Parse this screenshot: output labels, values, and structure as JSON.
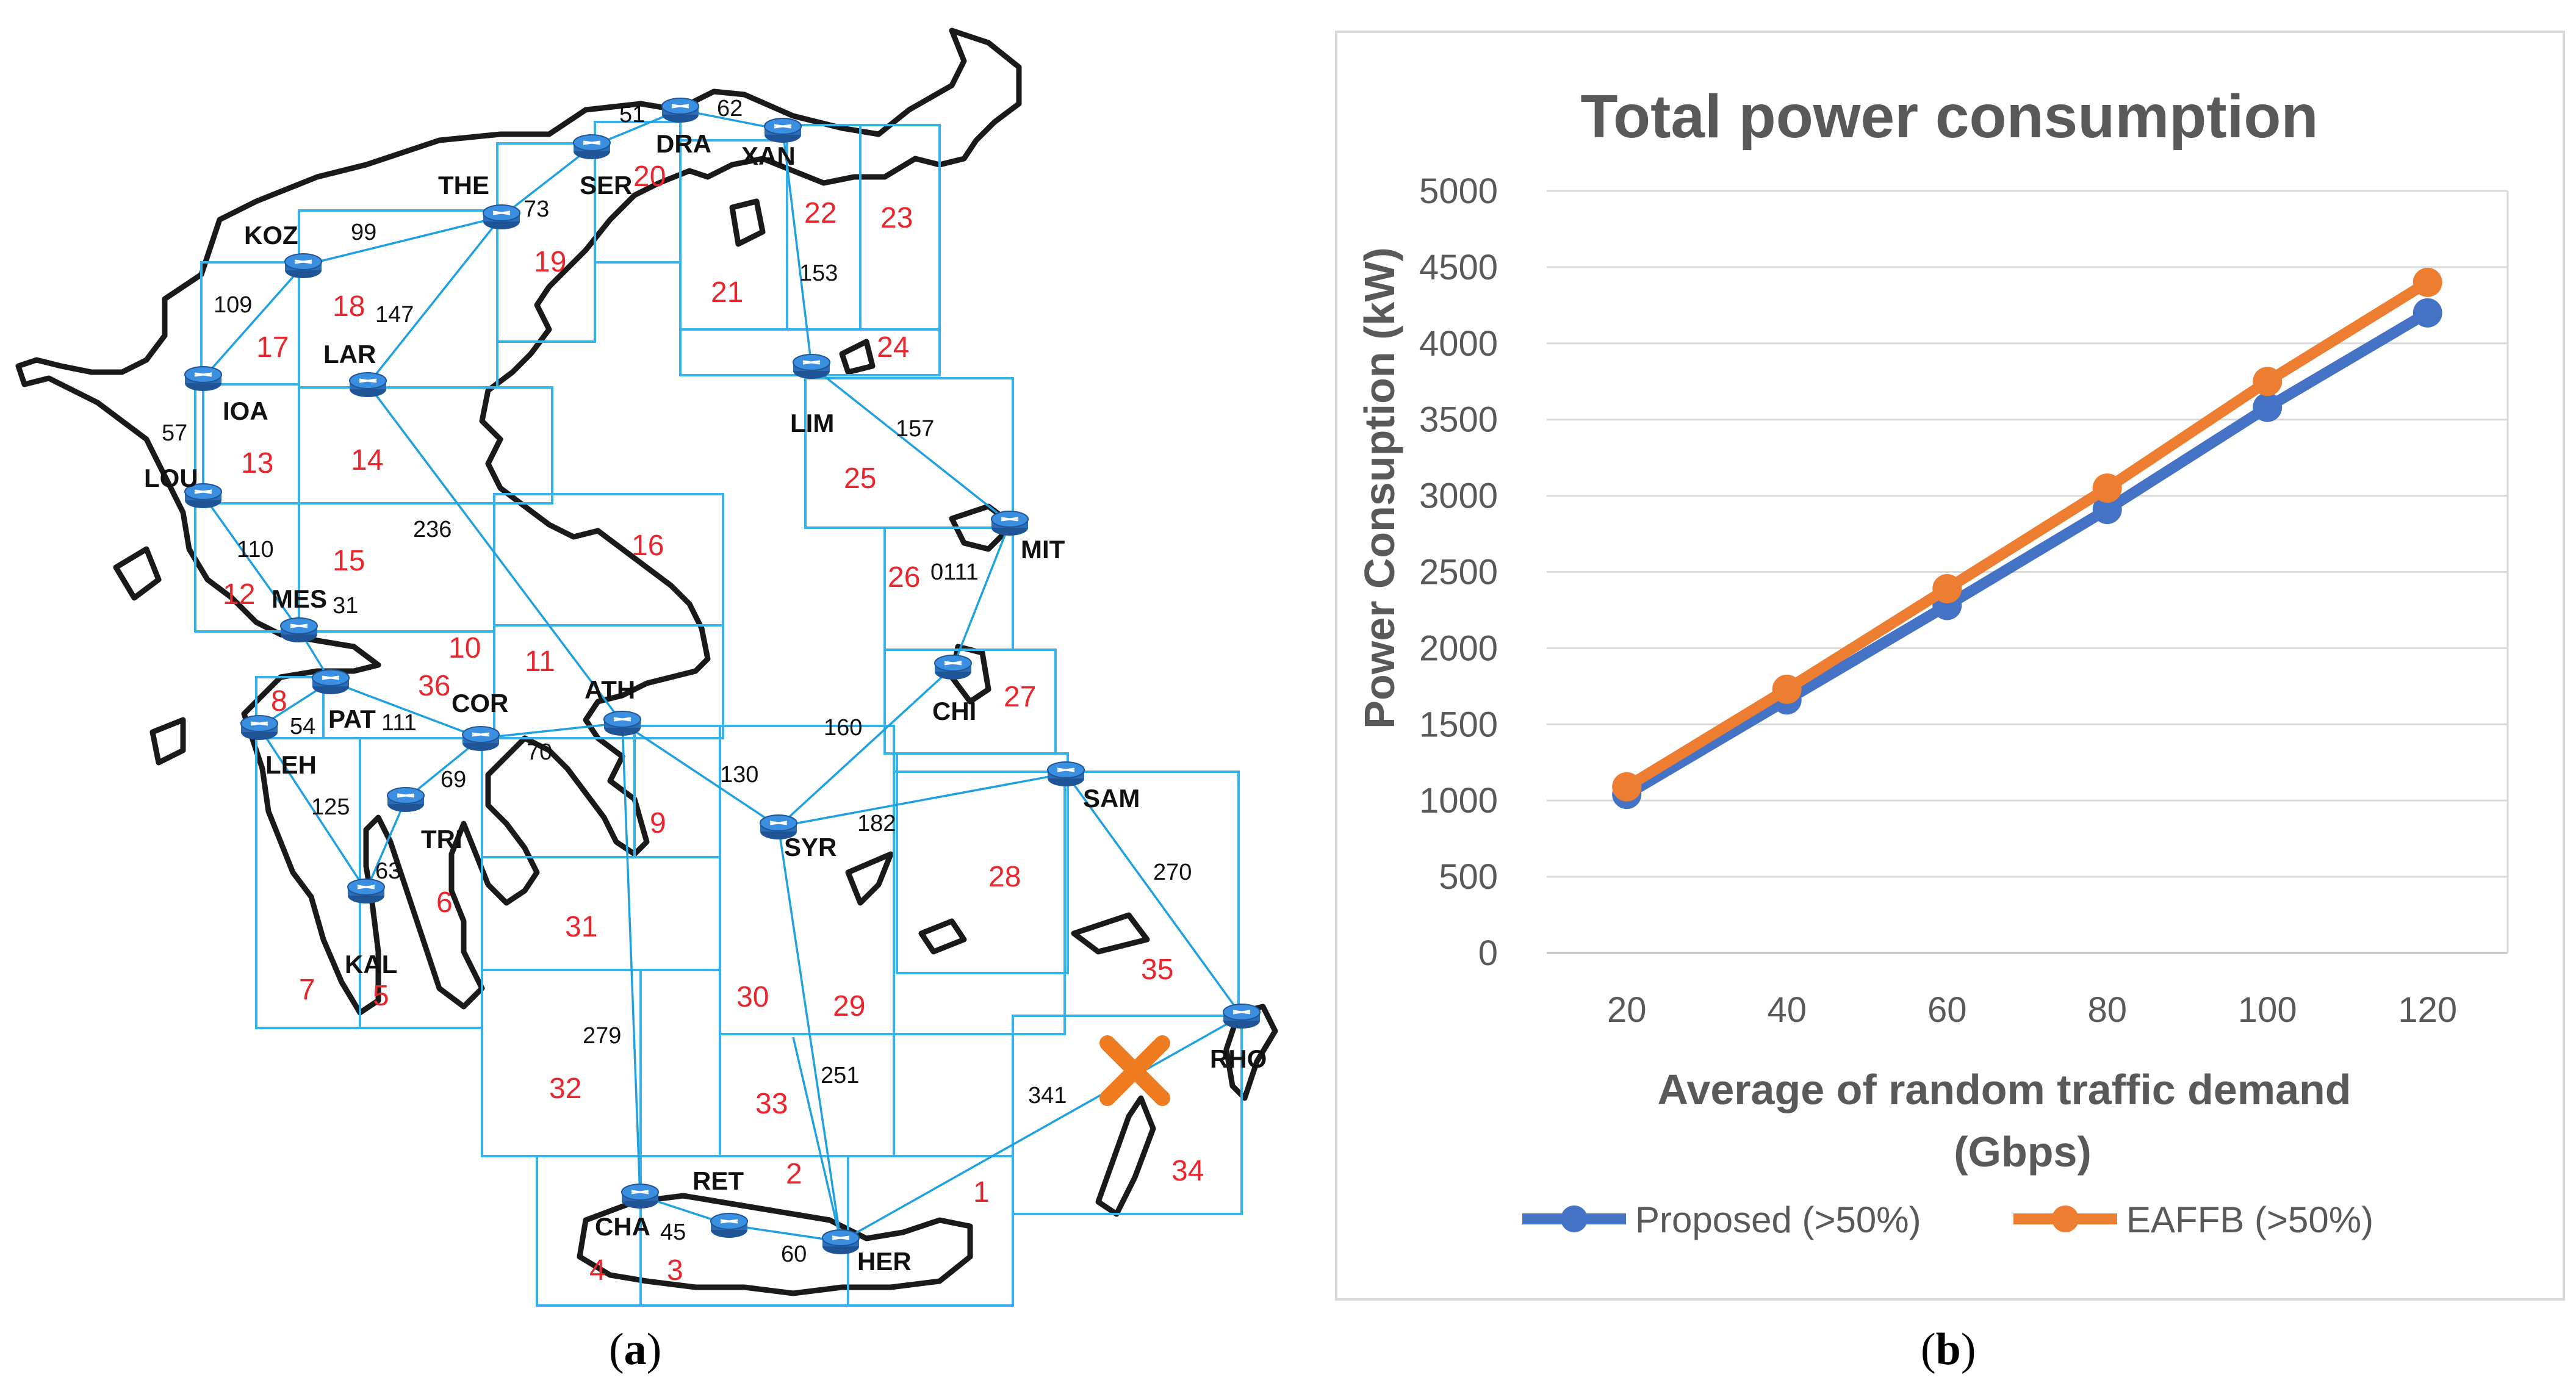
{
  "figure": {
    "caption_a": {
      "open": "(",
      "letter": "a",
      "close": ")"
    },
    "caption_b": {
      "open": "(",
      "letter": "b",
      "close": ")"
    }
  },
  "map": {
    "nodes": [
      {
        "id": "KOZ",
        "label": "KOZ"
      },
      {
        "id": "IOA",
        "label": "IOA"
      },
      {
        "id": "LOU",
        "label": "LOU"
      },
      {
        "id": "LAR",
        "label": "LAR"
      },
      {
        "id": "THE",
        "label": "THE"
      },
      {
        "id": "SER",
        "label": "SER"
      },
      {
        "id": "DRA",
        "label": "DRA"
      },
      {
        "id": "XAN",
        "label": "XAN"
      },
      {
        "id": "LIM",
        "label": "LIM"
      },
      {
        "id": "MIT",
        "label": "MIT"
      },
      {
        "id": "CHI",
        "label": "CHI"
      },
      {
        "id": "SAM",
        "label": "SAM"
      },
      {
        "id": "RHO",
        "label": "RHO"
      },
      {
        "id": "MES",
        "label": "MES"
      },
      {
        "id": "PAT",
        "label": "PAT"
      },
      {
        "id": "LEH",
        "label": "LEH"
      },
      {
        "id": "COR",
        "label": "COR"
      },
      {
        "id": "ATH",
        "label": "ATH"
      },
      {
        "id": "TRI",
        "label": "TRI"
      },
      {
        "id": "KAL",
        "label": "KAL"
      },
      {
        "id": "SYR",
        "label": "SYR"
      },
      {
        "id": "CHA",
        "label": "CHA"
      },
      {
        "id": "RET",
        "label": "RET"
      },
      {
        "id": "HER",
        "label": "HER"
      }
    ],
    "link_distances": [
      "51",
      "62",
      "73",
      "99",
      "109",
      "147",
      "153",
      "157",
      "57",
      "110",
      "236",
      "0111",
      "31",
      "54",
      "111",
      "160",
      "69",
      "70",
      "130",
      "182",
      "125",
      "63",
      "270",
      "279",
      "251",
      "341",
      "45",
      "60"
    ],
    "regions": [
      "1",
      "2",
      "3",
      "4",
      "5",
      "6",
      "7",
      "8",
      "9",
      "10",
      "11",
      "12",
      "13",
      "14",
      "15",
      "16",
      "17",
      "18",
      "19",
      "20",
      "21",
      "22",
      "23",
      "24",
      "25",
      "26",
      "27",
      "28",
      "29",
      "30",
      "31",
      "32",
      "33",
      "34",
      "35",
      "36"
    ],
    "failure_marker": "failed-link"
  },
  "chart_data": {
    "type": "line",
    "title": "Total power consumption",
    "xlabel": "Average of random traffic demand (Gbps)",
    "xlabel_lines": [
      "Average of random traffic demand",
      "(Gbps)"
    ],
    "ylabel": "Power Consuption (kW)",
    "categories": [
      20,
      40,
      60,
      80,
      100,
      120
    ],
    "ylim": [
      0,
      5000
    ],
    "yticks": [
      0,
      500,
      1000,
      1500,
      2000,
      2500,
      3000,
      3500,
      4000,
      4500,
      5000
    ],
    "grid": true,
    "legend_position": "bottom",
    "series": [
      {
        "name": "Proposed (>50%)",
        "color": "#4472C4",
        "values": [
          1040,
          1660,
          2280,
          2910,
          3580,
          4200
        ]
      },
      {
        "name": "EAFFB (>50%)",
        "color": "#ED7D31",
        "values": [
          1090,
          1730,
          2390,
          3050,
          3750,
          4400
        ]
      }
    ]
  },
  "colors": {
    "link": "#1FA0E0",
    "region_box": "#35B2EA",
    "region_label": "#E8262D",
    "coast": "#1A1A1A",
    "node": "#2A6DB8",
    "failure": "#F07C22",
    "plot_border": "#D9D9D9",
    "gridline": "#D9D9D9",
    "text": "#595959"
  }
}
